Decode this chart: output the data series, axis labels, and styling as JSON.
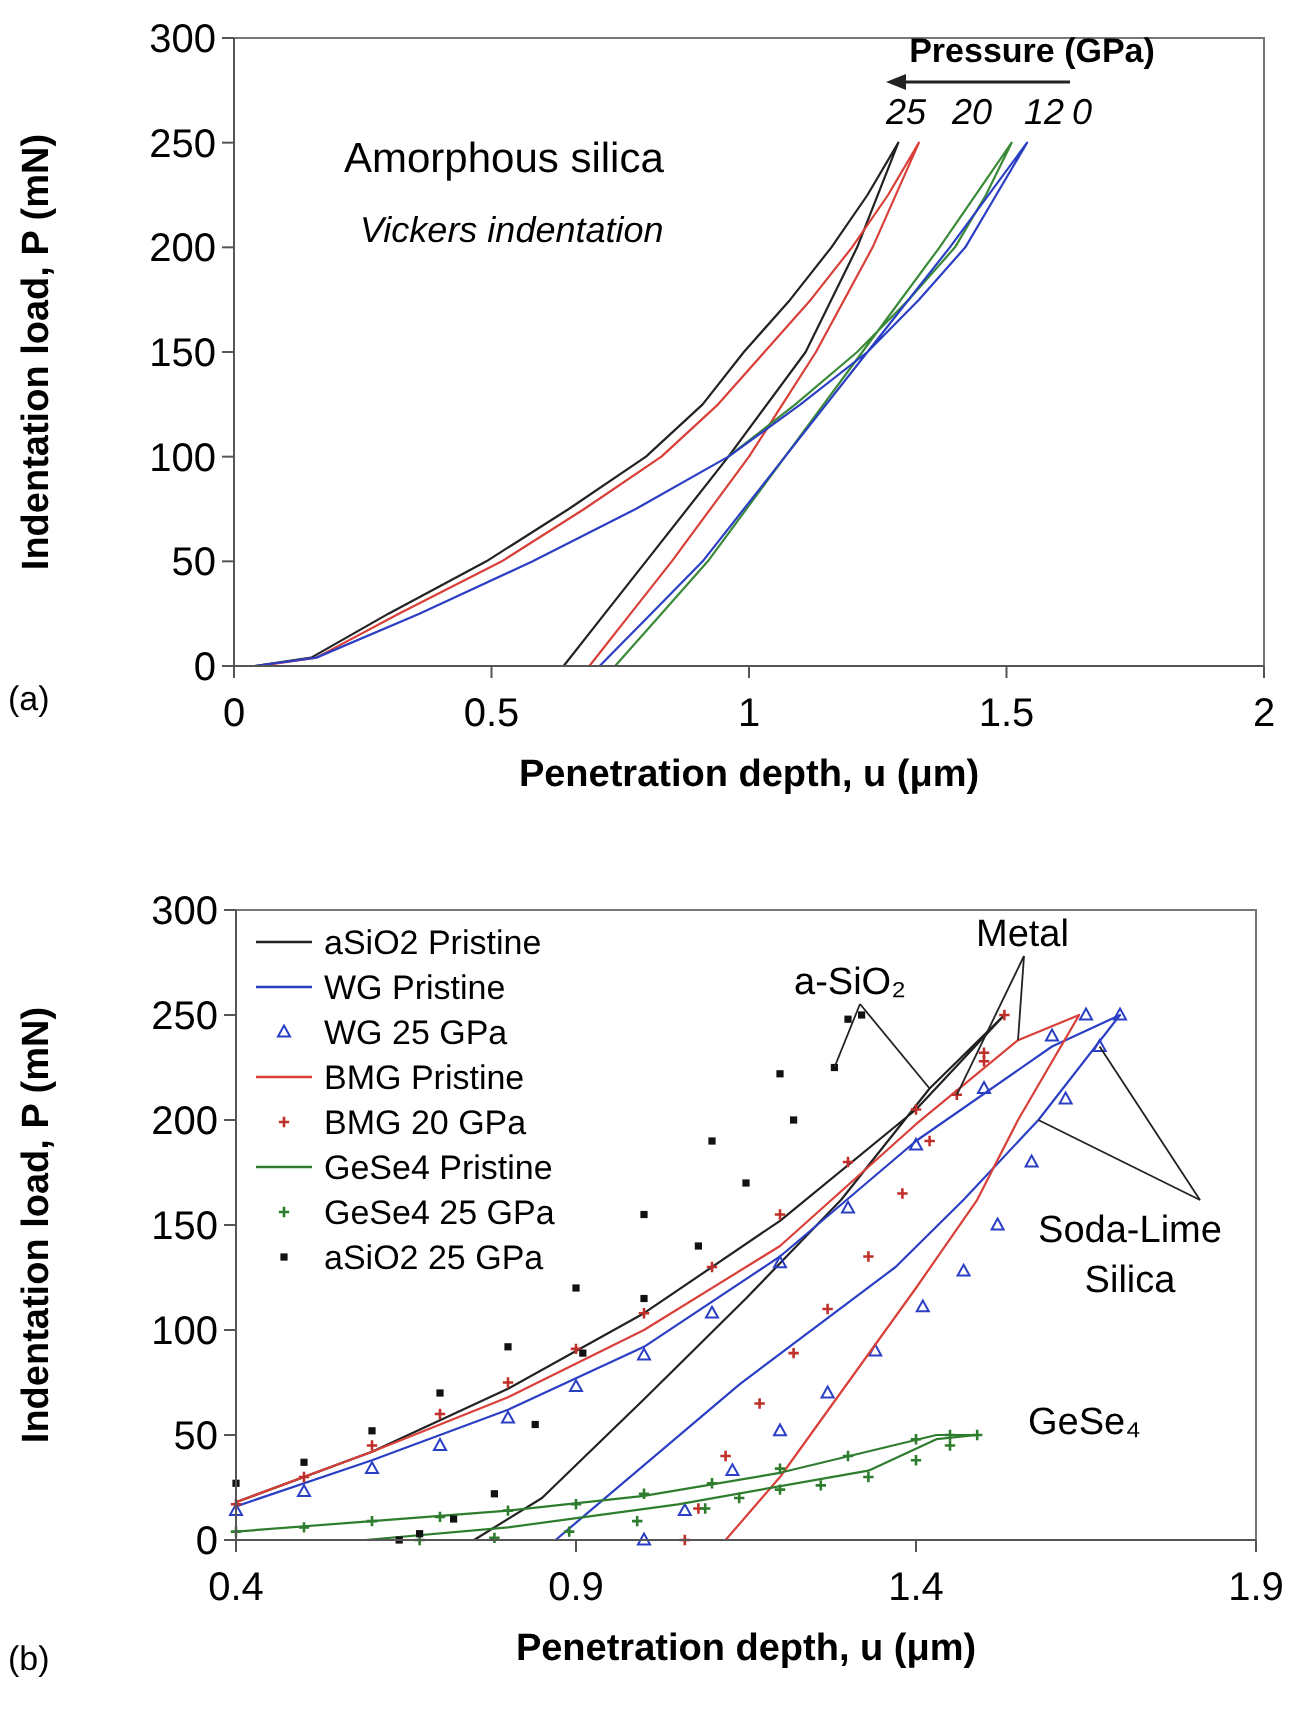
{
  "chart_data": [
    {
      "type": "line",
      "xlabel": "Penetration depth, u (μm)",
      "ylabel": "Indentation load, P (mN)",
      "xlim": [
        0,
        2
      ],
      "ylim": [
        0,
        300
      ],
      "xticks": [
        0,
        0.5,
        1,
        1.5,
        2
      ],
      "yticks": [
        0,
        50,
        100,
        150,
        200,
        250,
        300
      ],
      "grid": false,
      "annotations": [
        "Amorphous silica",
        "Vickers indentation",
        "(a)",
        "Pressure (GPa)",
        "25",
        "20",
        "12",
        "0"
      ],
      "series": [
        {
          "color": "#222222",
          "x": [
            0.04,
            0.15,
            0.3,
            0.49,
            0.65,
            0.8,
            0.91,
            0.99,
            1.08,
            1.16,
            1.23,
            1.29,
            1.21,
            1.11,
            0.96,
            0.8,
            0.72,
            0.64
          ],
          "values": [
            0,
            4,
            25,
            50,
            75,
            100,
            125,
            150,
            175,
            200,
            225,
            250,
            200,
            150,
            100,
            50,
            25,
            0
          ]
        },
        {
          "color": "#d9403a",
          "x": [
            0.05,
            0.16,
            0.32,
            0.52,
            0.68,
            0.83,
            0.94,
            1.03,
            1.12,
            1.2,
            1.27,
            1.33,
            1.24,
            1.13,
            1.0,
            0.85,
            0.77,
            0.69
          ],
          "values": [
            0,
            4,
            25,
            50,
            75,
            100,
            125,
            150,
            175,
            200,
            225,
            250,
            200,
            150,
            100,
            50,
            25,
            0
          ]
        },
        {
          "color": "#3a8a3a",
          "x": [
            0.96,
            1.09,
            1.21,
            1.31,
            1.4,
            1.46,
            1.51,
            1.37,
            1.22,
            1.07,
            0.92,
            0.83,
            0.74
          ],
          "values": [
            100,
            125,
            150,
            175,
            200,
            225,
            250,
            200,
            150,
            100,
            50,
            25,
            0
          ]
        },
        {
          "color": "#2b3fc4",
          "x": [
            0.04,
            0.16,
            0.36,
            0.58,
            0.78,
            0.96,
            1.1,
            1.23,
            1.33,
            1.42,
            1.48,
            1.54,
            1.39,
            1.23,
            1.07,
            0.91,
            0.81,
            0.71
          ],
          "values": [
            0,
            4,
            25,
            50,
            75,
            100,
            125,
            150,
            175,
            200,
            225,
            250,
            200,
            150,
            100,
            50,
            25,
            0
          ]
        }
      ]
    },
    {
      "type": "line",
      "xlabel": "Penetration depth, u (μm)",
      "ylabel": "Indentation load, P (mN)",
      "xlim": [
        0.4,
        1.9
      ],
      "ylim": [
        0,
        300
      ],
      "xticks": [
        0.4,
        0.9,
        1.4,
        1.9
      ],
      "yticks": [
        0,
        50,
        100,
        150,
        200,
        250,
        300
      ],
      "grid": false,
      "legend": "top left",
      "annotations": [
        {
          "text": "a-SiO₂",
          "x": 1.28,
          "y": 225
        },
        {
          "text": "Metal",
          "x": 1.46,
          "y": 212
        },
        {
          "text": "Soda-Lime\nSilica",
          "x": 1.67,
          "y": 235
        },
        "GeSe₄",
        "(b)"
      ],
      "series": [
        {
          "name": "aSiO2 Pristine",
          "color": "#222222",
          "x": [
            0.4,
            0.6,
            0.8,
            1.0,
            1.2,
            1.4,
            1.53,
            1.42,
            1.29,
            1.15,
            1.0,
            0.85,
            0.75
          ],
          "values": [
            18,
            42,
            72,
            108,
            152,
            205,
            250,
            215,
            162,
            115,
            67,
            20,
            0
          ]
        },
        {
          "name": "WG Pristine",
          "color": "#2b3fc4",
          "x": [
            0.4,
            0.6,
            0.8,
            1.0,
            1.2,
            1.4,
            1.6,
            1.7,
            1.58,
            1.47,
            1.37,
            1.14,
            0.87
          ],
          "values": [
            16,
            38,
            62,
            92,
            135,
            190,
            235,
            250,
            200,
            162,
            130,
            74,
            0
          ]
        },
        {
          "name": "WG 25 GPa",
          "type": "scatter",
          "marker": "triangle",
          "color": "#2b3fc4",
          "x": [
            0.4,
            0.5,
            0.6,
            0.7,
            0.8,
            0.9,
            1.0,
            1.1,
            1.2,
            1.3,
            1.4,
            1.5,
            1.6,
            1.65,
            1.7,
            1.67,
            1.62,
            1.57,
            1.52,
            1.47,
            1.41,
            1.34,
            1.27,
            1.2,
            1.13,
            1.06,
            1.0
          ],
          "values": [
            14,
            23,
            34,
            45,
            58,
            73,
            88,
            108,
            132,
            158,
            188,
            215,
            240,
            250,
            250,
            235,
            210,
            180,
            150,
            128,
            111,
            90,
            70,
            52,
            33,
            14,
            0
          ]
        },
        {
          "name": "BMG Pristine",
          "color": "#d9403a",
          "x": [
            0.4,
            0.6,
            0.8,
            1.0,
            1.2,
            1.4,
            1.55,
            1.64,
            1.55,
            1.49,
            1.4,
            1.3,
            1.2,
            1.12
          ],
          "values": [
            18,
            42,
            68,
            100,
            140,
            198,
            238,
            250,
            200,
            162,
            120,
            75,
            30,
            0
          ]
        },
        {
          "name": "BMG 20 GPa",
          "type": "scatter",
          "marker": "cross",
          "color": "#c0302a",
          "x": [
            0.4,
            0.5,
            0.6,
            0.7,
            0.8,
            0.9,
            1.0,
            1.1,
            1.2,
            1.3,
            1.4,
            1.5,
            1.53,
            1.5,
            1.46,
            1.42,
            1.38,
            1.33,
            1.27,
            1.22,
            1.17,
            1.12,
            1.08,
            1.06
          ],
          "values": [
            17,
            30,
            45,
            60,
            75,
            91,
            108,
            130,
            155,
            180,
            205,
            228,
            250,
            232,
            212,
            190,
            165,
            135,
            110,
            89,
            65,
            40,
            15,
            0
          ]
        },
        {
          "name": "GeSe4 Pristine",
          "color": "#2e7d2e",
          "x": [
            0.4,
            0.6,
            0.8,
            1.0,
            1.2,
            1.43,
            1.49,
            1.43,
            1.33,
            1.05,
            0.8,
            0.59
          ],
          "values": [
            4,
            9,
            14,
            21,
            32,
            50,
            50,
            48,
            33,
            17,
            6,
            0
          ]
        },
        {
          "name": "GeSe4 25 GPa",
          "type": "scatter",
          "marker": "cross",
          "color": "#2e7d2e",
          "x": [
            0.4,
            0.5,
            0.6,
            0.7,
            0.8,
            0.9,
            1.0,
            1.1,
            1.2,
            1.3,
            1.4,
            1.45,
            1.49,
            1.45,
            1.4,
            1.33,
            1.26,
            1.2,
            1.14,
            1.09,
            0.99,
            0.89,
            0.78,
            0.67
          ],
          "values": [
            4,
            6,
            9,
            11,
            14,
            17,
            22,
            27,
            34,
            40,
            48,
            50,
            50,
            45,
            38,
            30,
            26,
            24,
            20,
            15,
            9,
            4,
            1,
            0
          ]
        },
        {
          "name": "aSiO2 25 GPa",
          "type": "scatter",
          "marker": "square",
          "color": "#111111",
          "x": [
            0.4,
            0.5,
            0.6,
            0.7,
            0.8,
            0.9,
            1.0,
            1.1,
            1.2,
            1.3,
            1.32,
            1.28,
            1.22,
            1.15,
            1.08,
            1.0,
            0.91,
            0.84,
            0.78,
            0.72,
            0.67,
            0.64
          ],
          "values": [
            27,
            37,
            52,
            70,
            92,
            120,
            155,
            190,
            222,
            248,
            250,
            225,
            200,
            170,
            140,
            115,
            89,
            55,
            22,
            10,
            3,
            0
          ]
        }
      ]
    }
  ]
}
